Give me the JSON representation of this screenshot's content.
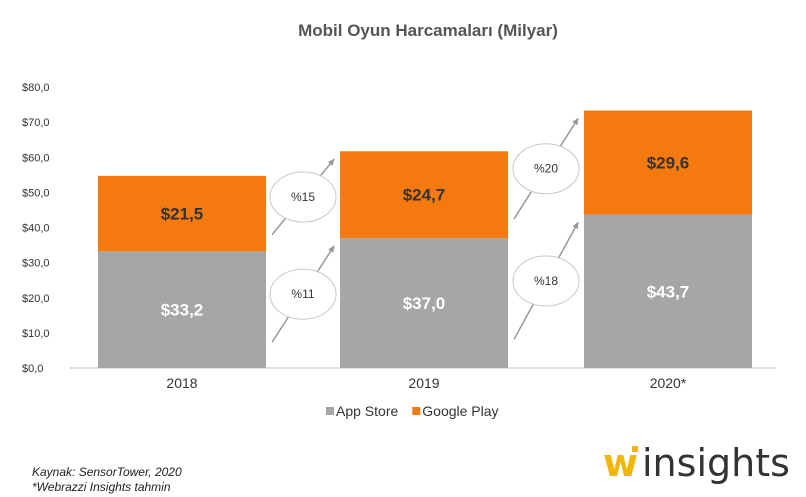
{
  "chart_data": {
    "type": "bar",
    "stacked": true,
    "title": "Mobil Oyun Harcamaları (Milyar)",
    "categories": [
      "2018",
      "2019",
      "2020*"
    ],
    "series": [
      {
        "name": "App Store",
        "color": "#a6a6a6",
        "values": [
          33.2,
          37.0,
          43.7
        ],
        "labels": [
          "$33,2",
          "$37,0",
          "$43,7"
        ],
        "label_color": "#ffffff"
      },
      {
        "name": "Google Play",
        "color": "#f47a0f",
        "values": [
          21.5,
          24.7,
          29.6
        ],
        "labels": [
          "$21,5",
          "$24,7",
          "$29,6"
        ],
        "label_color": "#333333"
      }
    ],
    "ylim": [
      0,
      80
    ],
    "yticks": [
      0,
      10,
      20,
      30,
      40,
      50,
      60,
      70,
      80
    ],
    "ytick_labels": [
      "$0,0",
      "$10,0",
      "$20,0",
      "$30,0",
      "$40,0",
      "$50,0",
      "$60,0",
      "$70,0",
      "$80,0"
    ],
    "grid": false,
    "legend_position": "bottom",
    "growth_annotations": [
      {
        "from": 0,
        "to": 1,
        "series": "Google Play",
        "label": "%15"
      },
      {
        "from": 0,
        "to": 1,
        "series": "App Store",
        "label": "%11"
      },
      {
        "from": 1,
        "to": 2,
        "series": "Google Play",
        "label": "%20"
      },
      {
        "from": 1,
        "to": 2,
        "series": "App Store",
        "label": "%18"
      }
    ]
  },
  "footnotes": {
    "source": "Kaynak: SensorTower, 2020",
    "estimate": "*Webrazzi Insights tahmin"
  },
  "logo": {
    "w": "w",
    "text": "insights",
    "accent": "#f2b705"
  }
}
